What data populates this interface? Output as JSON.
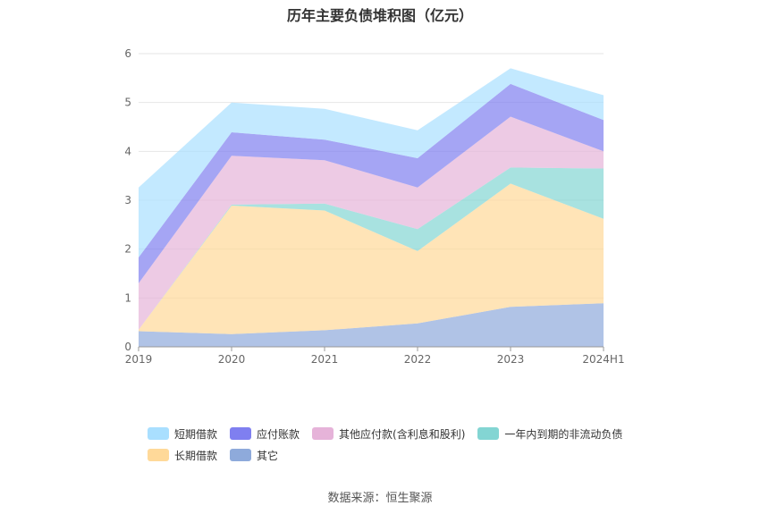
{
  "title": "历年主要负债堆积图（亿元）",
  "source": "数据来源：恒生聚源",
  "chart_data": {
    "type": "area",
    "stacked": true,
    "categories": [
      "2019",
      "2020",
      "2021",
      "2022",
      "2023",
      "2024H1"
    ],
    "ylim": [
      0,
      6
    ],
    "yticks": [
      "0",
      "1",
      "2",
      "3",
      "4",
      "5",
      "6"
    ],
    "grid": true,
    "legend_placement": "bottom",
    "series": [
      {
        "name": "其它",
        "color": "#8eaadb",
        "values": [
          0.32,
          0.26,
          0.34,
          0.48,
          0.82,
          0.89
        ]
      },
      {
        "name": "长期借款",
        "color": "#ffd999",
        "values": [
          0.03,
          2.63,
          2.45,
          1.48,
          2.52,
          1.73
        ]
      },
      {
        "name": "一年内到期的非流动负债",
        "color": "#83d5d3",
        "values": [
          0.0,
          0.02,
          0.14,
          0.45,
          0.33,
          1.03
        ]
      },
      {
        "name": "其他应付款(含利息和股利)",
        "color": "#e6b3d9",
        "values": [
          0.95,
          1.0,
          0.89,
          0.85,
          1.04,
          0.35
        ]
      },
      {
        "name": "应付账款",
        "color": "#7f7ff0",
        "values": [
          0.53,
          0.48,
          0.42,
          0.6,
          0.67,
          0.64
        ]
      },
      {
        "name": "短期借款",
        "color": "#a9dfff",
        "values": [
          1.43,
          0.61,
          0.63,
          0.57,
          0.32,
          0.51
        ]
      }
    ]
  },
  "legend": {
    "row1": [
      {
        "label": "短期借款",
        "color": "#a9dfff"
      },
      {
        "label": "应付账款",
        "color": "#7f7ff0"
      },
      {
        "label": "其他应付款(含利息和股利)",
        "color": "#e6b3d9"
      },
      {
        "label": "一年内到期的非流动负债",
        "color": "#83d5d3"
      }
    ],
    "row2": [
      {
        "label": "长期借款",
        "color": "#ffd999"
      },
      {
        "label": "其它",
        "color": "#8eaadb"
      }
    ]
  }
}
